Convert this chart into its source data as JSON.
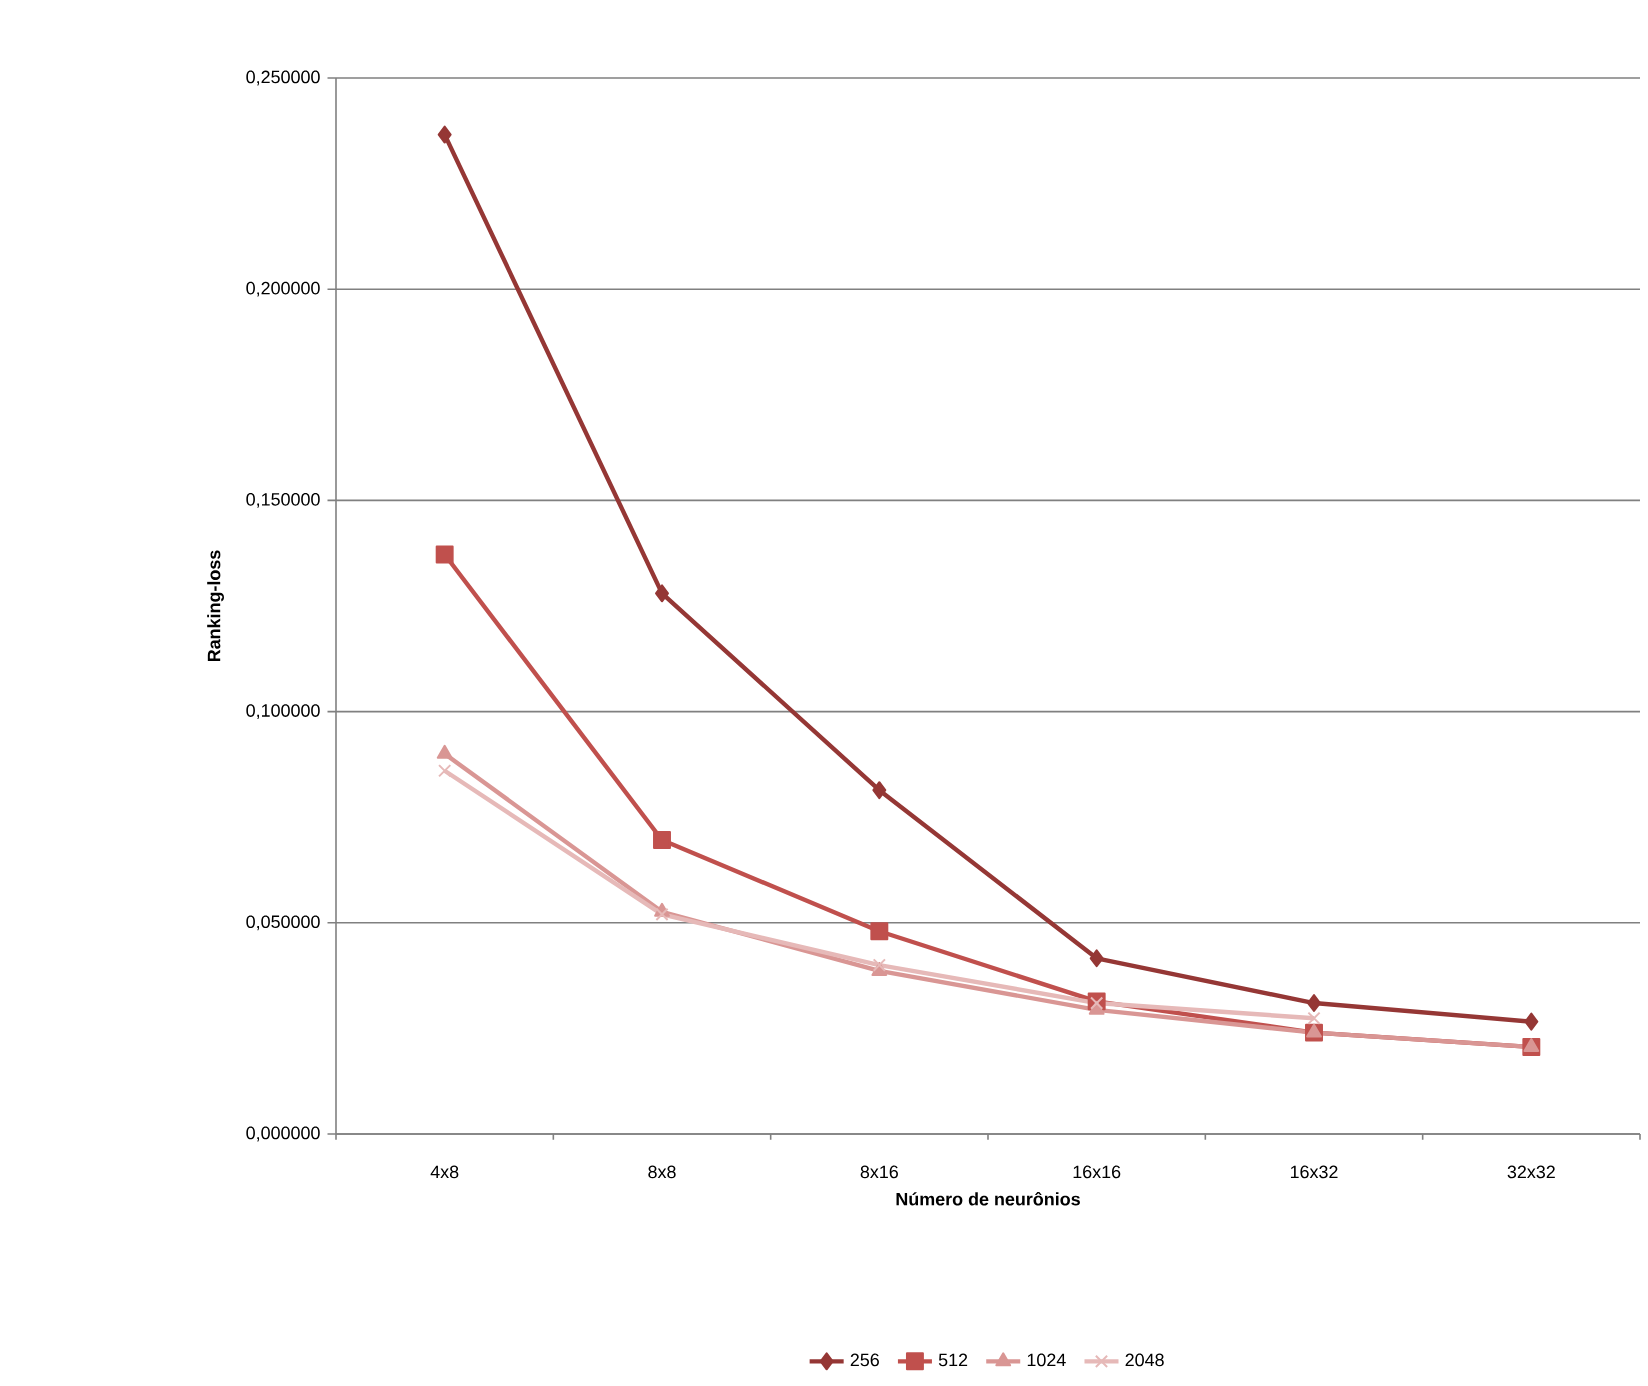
{
  "chart_data": {
    "type": "line",
    "xlabel": "Número de neurônios",
    "ylabel": "Ranking-loss",
    "categories": [
      "4x8",
      "8x8",
      "8x16",
      "16x16",
      "16x32",
      "32x32"
    ],
    "series": [
      {
        "name": "256",
        "color": "#953735",
        "marker": "diamond",
        "values": [
          0.2366,
          0.128,
          0.0814,
          0.0416,
          0.031,
          0.0266
        ]
      },
      {
        "name": "512",
        "color": "#c0504d",
        "marker": "square",
        "values": [
          0.1372,
          0.0696,
          0.048,
          0.0314,
          0.024,
          0.0206
        ]
      },
      {
        "name": "1024",
        "color": "#d99694",
        "marker": "triangle",
        "values": [
          0.09,
          0.0526,
          0.0386,
          0.0294,
          0.024,
          0.0206
        ]
      },
      {
        "name": "2048",
        "color": "#e6b9b8",
        "marker": "cross",
        "values": [
          0.086,
          0.052,
          0.04,
          0.031,
          0.0274,
          null
        ]
      }
    ],
    "ylim": [
      0,
      0.25
    ],
    "yticks": [
      {
        "value": 0,
        "label": "0,000000"
      },
      {
        "value": 0.05,
        "label": "0,050000"
      },
      {
        "value": 0.1,
        "label": "0,100000"
      },
      {
        "value": 0.15,
        "label": "0,150000"
      },
      {
        "value": 0.2,
        "label": "0,200000"
      },
      {
        "value": 0.25,
        "label": "0,250000"
      }
    ],
    "grid": "y",
    "legend": "bottom"
  }
}
